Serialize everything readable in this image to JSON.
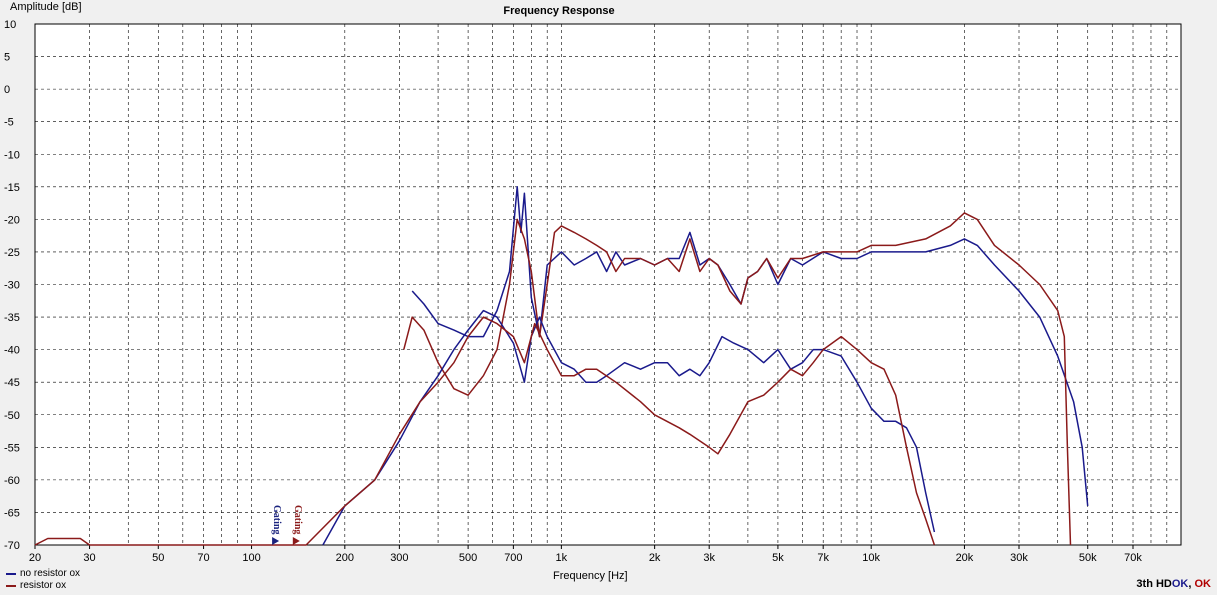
{
  "chart_data": {
    "type": "line",
    "title": "Frequency Response",
    "ylabel": "Amplitude [dB]",
    "xlabel": "Frequency [Hz]",
    "x_scale": "log",
    "xlim": [
      20,
      100000
    ],
    "ylim": [
      -70,
      10
    ],
    "grid": true,
    "legend_position": "bottom-left",
    "y_ticks": [
      "10",
      "5",
      "0",
      "-5",
      "-10",
      "-15",
      "-20",
      "-25",
      "-30",
      "-35",
      "-40",
      "-45",
      "-50",
      "-55",
      "-60",
      "-65",
      "-70"
    ],
    "x_tick_values": [
      20,
      30,
      50,
      70,
      100,
      200,
      300,
      500,
      700,
      1000,
      2000,
      3000,
      5000,
      7000,
      10000,
      20000,
      30000,
      50000,
      70000
    ],
    "x_tick_labels": [
      "20",
      "30",
      "50",
      "70",
      "100",
      "200",
      "300",
      "500",
      "700",
      "1k",
      "2k",
      "3k",
      "5k",
      "7k",
      "10k",
      "20k",
      "30k",
      "50k",
      "70k"
    ],
    "annotations": [
      {
        "text": "Gating",
        "x": 120,
        "color": "#1a237e"
      },
      {
        "text": "Gating",
        "x": 140,
        "color": "#8b1a1a"
      }
    ],
    "series": [
      {
        "name": "no resistor ox",
        "color": "#1a1a8c",
        "points": [
          [
            330,
            -31
          ],
          [
            360,
            -33
          ],
          [
            400,
            -36
          ],
          [
            450,
            -37
          ],
          [
            500,
            -38
          ],
          [
            560,
            -38
          ],
          [
            620,
            -34
          ],
          [
            680,
            -28
          ],
          [
            720,
            -15
          ],
          [
            740,
            -22
          ],
          [
            760,
            -16
          ],
          [
            800,
            -32
          ],
          [
            850,
            -38
          ],
          [
            900,
            -27
          ],
          [
            1000,
            -25
          ],
          [
            1100,
            -27
          ],
          [
            1200,
            -26
          ],
          [
            1300,
            -25
          ],
          [
            1400,
            -28
          ],
          [
            1500,
            -25
          ],
          [
            1600,
            -27
          ],
          [
            1800,
            -26
          ],
          [
            2000,
            -27
          ],
          [
            2200,
            -26
          ],
          [
            2400,
            -26
          ],
          [
            2600,
            -22
          ],
          [
            2800,
            -27
          ],
          [
            3000,
            -26
          ],
          [
            3200,
            -27
          ],
          [
            3500,
            -30
          ],
          [
            3800,
            -33
          ],
          [
            4000,
            -29
          ],
          [
            4300,
            -28
          ],
          [
            4600,
            -26
          ],
          [
            5000,
            -30
          ],
          [
            5500,
            -26
          ],
          [
            6000,
            -27
          ],
          [
            7000,
            -25
          ],
          [
            8000,
            -26
          ],
          [
            9000,
            -26
          ],
          [
            10000,
            -25
          ],
          [
            12000,
            -25
          ],
          [
            15000,
            -25
          ],
          [
            18000,
            -24
          ],
          [
            20000,
            -23
          ],
          [
            22000,
            -24
          ],
          [
            25000,
            -27
          ],
          [
            30000,
            -31
          ],
          [
            35000,
            -35
          ],
          [
            40000,
            -41
          ],
          [
            45000,
            -48
          ],
          [
            48000,
            -55
          ],
          [
            50000,
            -64
          ]
        ]
      },
      {
        "name": "resistor ox",
        "color": "#8b1a1a",
        "points": [
          [
            310,
            -40
          ],
          [
            330,
            -35
          ],
          [
            360,
            -37
          ],
          [
            400,
            -42
          ],
          [
            450,
            -46
          ],
          [
            500,
            -47
          ],
          [
            560,
            -44
          ],
          [
            620,
            -40
          ],
          [
            680,
            -30
          ],
          [
            720,
            -20
          ],
          [
            760,
            -23
          ],
          [
            800,
            -28
          ],
          [
            850,
            -38
          ],
          [
            900,
            -30
          ],
          [
            950,
            -22
          ],
          [
            1000,
            -21
          ],
          [
            1100,
            -22
          ],
          [
            1200,
            -23
          ],
          [
            1300,
            -24
          ],
          [
            1400,
            -25
          ],
          [
            1500,
            -28
          ],
          [
            1600,
            -26
          ],
          [
            1800,
            -26
          ],
          [
            2000,
            -27
          ],
          [
            2200,
            -26
          ],
          [
            2400,
            -28
          ],
          [
            2600,
            -23
          ],
          [
            2800,
            -28
          ],
          [
            3000,
            -26
          ],
          [
            3200,
            -27
          ],
          [
            3500,
            -31
          ],
          [
            3800,
            -33
          ],
          [
            4000,
            -29
          ],
          [
            4300,
            -28
          ],
          [
            4600,
            -26
          ],
          [
            5000,
            -29
          ],
          [
            5500,
            -26
          ],
          [
            6000,
            -26
          ],
          [
            7000,
            -25
          ],
          [
            8000,
            -25
          ],
          [
            9000,
            -25
          ],
          [
            10000,
            -24
          ],
          [
            12000,
            -24
          ],
          [
            15000,
            -23
          ],
          [
            18000,
            -21
          ],
          [
            20000,
            -19
          ],
          [
            22000,
            -20
          ],
          [
            25000,
            -24
          ],
          [
            30000,
            -27
          ],
          [
            35000,
            -30
          ],
          [
            40000,
            -34
          ],
          [
            42000,
            -38
          ],
          [
            43000,
            -55
          ],
          [
            44000,
            -70
          ]
        ]
      },
      {
        "name": "no resistor ox 3th HD",
        "color": "#1a1a8c",
        "points": [
          [
            170,
            -70
          ],
          [
            200,
            -64
          ],
          [
            250,
            -60
          ],
          [
            300,
            -54
          ],
          [
            350,
            -48
          ],
          [
            400,
            -44
          ],
          [
            450,
            -40
          ],
          [
            500,
            -37
          ],
          [
            560,
            -34
          ],
          [
            620,
            -35
          ],
          [
            700,
            -39
          ],
          [
            760,
            -45
          ],
          [
            800,
            -38
          ],
          [
            850,
            -35
          ],
          [
            900,
            -38
          ],
          [
            1000,
            -42
          ],
          [
            1100,
            -43
          ],
          [
            1200,
            -45
          ],
          [
            1300,
            -45
          ],
          [
            1400,
            -44
          ],
          [
            1600,
            -42
          ],
          [
            1800,
            -43
          ],
          [
            2000,
            -42
          ],
          [
            2200,
            -42
          ],
          [
            2400,
            -44
          ],
          [
            2600,
            -43
          ],
          [
            2800,
            -44
          ],
          [
            3000,
            -42
          ],
          [
            3300,
            -38
          ],
          [
            3600,
            -39
          ],
          [
            4000,
            -40
          ],
          [
            4500,
            -42
          ],
          [
            5000,
            -40
          ],
          [
            5500,
            -43
          ],
          [
            6000,
            -42
          ],
          [
            6500,
            -40
          ],
          [
            7000,
            -40
          ],
          [
            8000,
            -41
          ],
          [
            9000,
            -45
          ],
          [
            10000,
            -49
          ],
          [
            11000,
            -51
          ],
          [
            12000,
            -51
          ],
          [
            13000,
            -52
          ],
          [
            14000,
            -55
          ],
          [
            15000,
            -62
          ],
          [
            16000,
            -68
          ]
        ]
      },
      {
        "name": "resistor ox 3th HD",
        "color": "#8b1a1a",
        "points": [
          [
            20,
            -70
          ],
          [
            22,
            -69
          ],
          [
            28,
            -69
          ],
          [
            30,
            -70
          ],
          [
            150,
            -70
          ],
          [
            200,
            -64
          ],
          [
            250,
            -60
          ],
          [
            300,
            -53
          ],
          [
            350,
            -48
          ],
          [
            400,
            -45
          ],
          [
            450,
            -42
          ],
          [
            500,
            -38
          ],
          [
            560,
            -35
          ],
          [
            620,
            -36
          ],
          [
            700,
            -38
          ],
          [
            760,
            -42
          ],
          [
            820,
            -36
          ],
          [
            900,
            -40
          ],
          [
            1000,
            -44
          ],
          [
            1100,
            -44
          ],
          [
            1200,
            -43
          ],
          [
            1300,
            -43
          ],
          [
            1500,
            -45
          ],
          [
            1800,
            -48
          ],
          [
            2000,
            -50
          ],
          [
            2400,
            -52
          ],
          [
            2600,
            -53
          ],
          [
            3000,
            -55
          ],
          [
            3200,
            -56
          ],
          [
            3500,
            -53
          ],
          [
            4000,
            -48
          ],
          [
            4500,
            -47
          ],
          [
            5000,
            -45
          ],
          [
            5500,
            -43
          ],
          [
            6000,
            -44
          ],
          [
            6500,
            -42
          ],
          [
            7000,
            -40
          ],
          [
            8000,
            -38
          ],
          [
            9000,
            -40
          ],
          [
            10000,
            -42
          ],
          [
            11000,
            -43
          ],
          [
            12000,
            -47
          ],
          [
            13000,
            -55
          ],
          [
            14000,
            -62
          ],
          [
            15000,
            -66
          ],
          [
            16000,
            -70
          ]
        ]
      }
    ]
  },
  "legend": [
    {
      "label": "no resistor ox",
      "color": "#1a1a8c"
    },
    {
      "label": "resistor ox",
      "color": "#8b1a1a"
    }
  ],
  "status": {
    "prefix": "3th HD",
    "ok1": "OK",
    "sep": ", ",
    "ok2": "OK",
    "ok1_color": "#1a1a8c",
    "ok2_color": "#b00000"
  }
}
